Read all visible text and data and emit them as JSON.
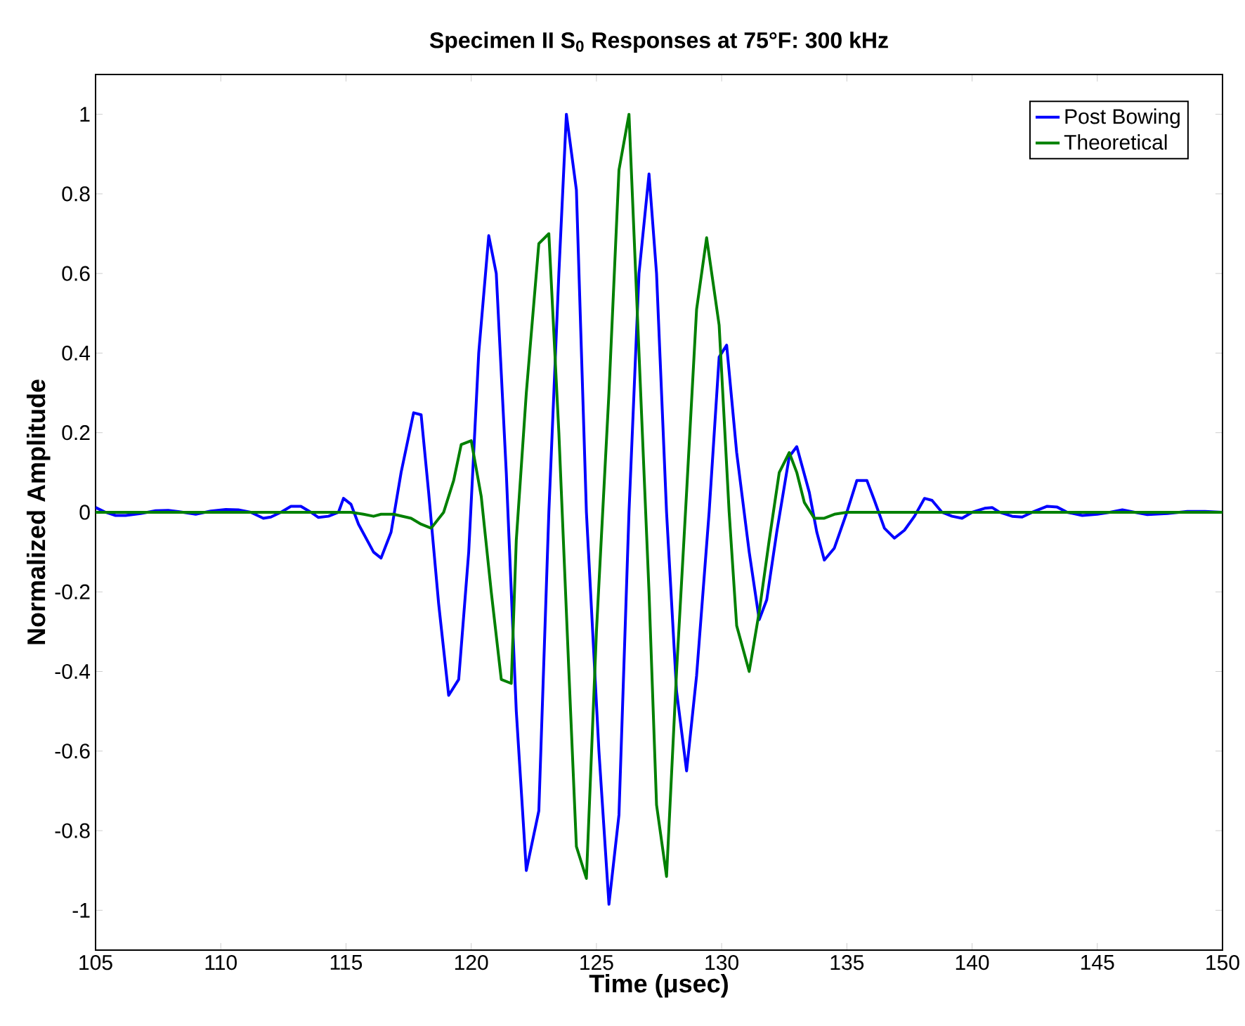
{
  "chart_data": {
    "type": "line",
    "title": "Specimen II S$_{0}$ Responses at 75°F: 300 kHz",
    "xlabel": "Time (μsec)",
    "ylabel": "Normalized Amplitude",
    "xlim": [
      105,
      150
    ],
    "ylim": [
      -1.1,
      1.1
    ],
    "xticks": [
      105,
      110,
      115,
      120,
      125,
      130,
      135,
      140,
      145,
      150
    ],
    "yticks": [
      -1,
      -0.8,
      -0.6,
      -0.4,
      -0.2,
      0,
      0.2,
      0.4,
      0.6,
      0.8,
      1
    ],
    "legend": "top right",
    "series": [
      {
        "name": "Post Bowing",
        "color": "#0000ff",
        "x": [
          105.0,
          105.4,
          105.8,
          106.2,
          106.8,
          107.4,
          107.9,
          108.5,
          109.0,
          109.6,
          110.2,
          110.7,
          111.2,
          111.7,
          112.0,
          112.4,
          112.8,
          113.2,
          113.6,
          113.9,
          114.3,
          114.7,
          114.9,
          115.2,
          115.5,
          116.1,
          116.4,
          116.8,
          117.2,
          117.7,
          118.0,
          118.3,
          118.7,
          119.1,
          119.5,
          119.9,
          120.3,
          120.7,
          121.0,
          121.4,
          121.8,
          122.2,
          122.7,
          123.1,
          123.5,
          123.8,
          124.2,
          124.6,
          125.1,
          125.5,
          125.9,
          126.3,
          126.7,
          127.1,
          127.4,
          127.8,
          128.2,
          128.6,
          129.0,
          129.5,
          129.9,
          130.2,
          130.6,
          131.1,
          131.5,
          131.8,
          132.2,
          132.7,
          133.0,
          133.5,
          133.8,
          134.1,
          134.5,
          135.0,
          135.4,
          135.8,
          136.1,
          136.5,
          136.9,
          137.3,
          137.7,
          138.1,
          138.4,
          138.8,
          139.2,
          139.6,
          140.0,
          140.5,
          140.8,
          141.1,
          141.6,
          142.0,
          142.4,
          143.0,
          143.4,
          143.8,
          144.4,
          145.0,
          145.5,
          146.0,
          146.5,
          147.0,
          147.8,
          148.6,
          149.3,
          150.0
        ],
        "values": [
          0.012,
          0.0,
          -0.008,
          -0.008,
          -0.003,
          0.004,
          0.005,
          0.0,
          -0.005,
          0.003,
          0.007,
          0.006,
          0.0,
          -0.015,
          -0.012,
          0.0,
          0.015,
          0.015,
          0.0,
          -0.013,
          -0.01,
          0.0,
          0.035,
          0.02,
          -0.03,
          -0.1,
          -0.115,
          -0.05,
          0.1,
          0.25,
          0.245,
          0.05,
          -0.23,
          -0.46,
          -0.42,
          -0.1,
          0.4,
          0.695,
          0.6,
          0.1,
          -0.5,
          -0.9,
          -0.75,
          0.0,
          0.6,
          1.0,
          0.81,
          0.0,
          -0.6,
          -0.985,
          -0.76,
          0.0,
          0.6,
          0.85,
          0.6,
          0.0,
          -0.45,
          -0.65,
          -0.41,
          0.0,
          0.39,
          0.42,
          0.15,
          -0.1,
          -0.27,
          -0.22,
          -0.05,
          0.14,
          0.165,
          0.05,
          -0.05,
          -0.12,
          -0.09,
          0.0,
          0.08,
          0.08,
          0.03,
          -0.04,
          -0.065,
          -0.045,
          -0.01,
          0.035,
          0.03,
          0.0,
          -0.01,
          -0.015,
          0.0,
          0.01,
          0.012,
          0.0,
          -0.01,
          -0.012,
          0.0,
          0.015,
          0.013,
          0.0,
          -0.008,
          -0.005,
          0.0,
          0.006,
          0.0,
          -0.006,
          -0.003,
          0.002,
          0.002,
          0.0
        ]
      },
      {
        "name": "Theoretical",
        "color": "#008000",
        "x": [
          105.0,
          110.0,
          115.2,
          115.7,
          116.1,
          116.4,
          116.9,
          117.6,
          118.0,
          118.4,
          118.9,
          119.3,
          119.6,
          120.0,
          120.4,
          120.8,
          121.2,
          121.6,
          121.8,
          122.2,
          122.7,
          123.1,
          123.5,
          123.9,
          124.2,
          124.6,
          125.0,
          125.5,
          125.9,
          126.3,
          126.7,
          127.1,
          127.4,
          127.8,
          128.2,
          128.6,
          129.0,
          129.4,
          129.9,
          130.3,
          130.6,
          131.1,
          131.5,
          131.9,
          132.3,
          132.7,
          133.0,
          133.3,
          133.7,
          134.1,
          134.5,
          135.0,
          150.0
        ],
        "values": [
          0.0,
          0.0,
          0.0,
          -0.005,
          -0.01,
          -0.005,
          -0.005,
          -0.015,
          -0.03,
          -0.04,
          0.0,
          0.08,
          0.17,
          0.18,
          0.04,
          -0.2,
          -0.42,
          -0.43,
          -0.07,
          0.3,
          0.675,
          0.7,
          0.2,
          -0.4,
          -0.84,
          -0.92,
          -0.3,
          0.3,
          0.86,
          1.0,
          0.4,
          -0.2,
          -0.735,
          -0.915,
          -0.4,
          0.05,
          0.51,
          0.69,
          0.47,
          0.0,
          -0.285,
          -0.4,
          -0.25,
          -0.07,
          0.1,
          0.15,
          0.1,
          0.025,
          -0.015,
          -0.015,
          -0.005,
          0.0,
          0.0
        ]
      }
    ]
  }
}
